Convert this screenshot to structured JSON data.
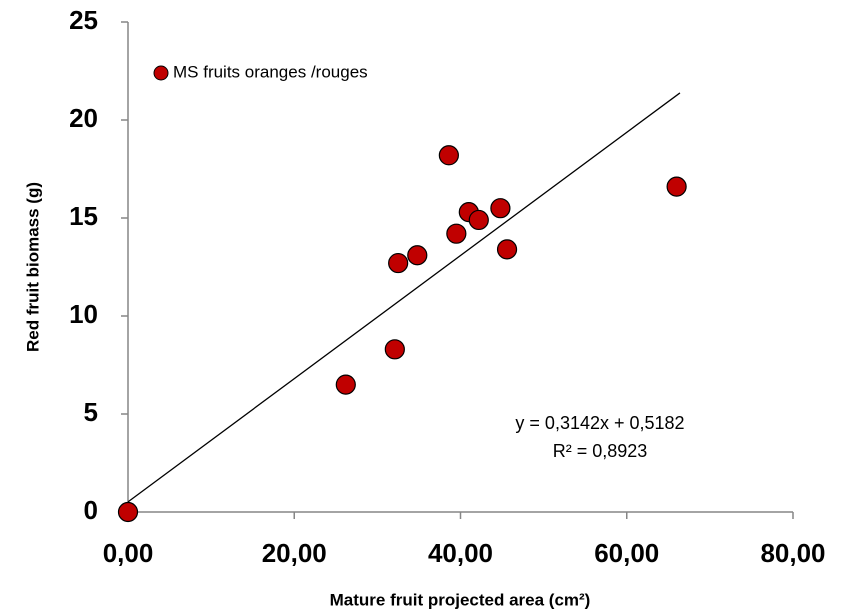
{
  "chart_data": {
    "type": "scatter",
    "x_label": "Mature fruit projected area (cm²)",
    "y_label": "Red fruit biomass (g)",
    "series": [
      {
        "name": "MS fruits oranges /rouges",
        "color": "#c00000",
        "x": [
          0,
          26.2,
          32.1,
          32.5,
          34.8,
          38.6,
          39.5,
          41.0,
          42.2,
          44.8,
          45.6,
          66.0
        ],
        "values": [
          0,
          6.5,
          8.3,
          12.7,
          13.1,
          18.2,
          14.2,
          15.3,
          14.9,
          15.5,
          13.4,
          16.6
        ]
      }
    ],
    "trendline": {
      "slope": 0.3142,
      "intercept": 0.5182,
      "x": [
        0,
        66.4
      ]
    },
    "annotations": [
      "y = 0,3142x + 0,5182",
      "R² = 0,8923"
    ],
    "xlim": [
      0,
      80
    ],
    "xticks": [
      {
        "value": 0,
        "label": "0,00"
      },
      {
        "value": 20,
        "label": "20,00"
      },
      {
        "value": 40,
        "label": "40,00"
      },
      {
        "value": 60,
        "label": "60,00"
      },
      {
        "value": 80,
        "label": "80,00"
      }
    ],
    "ylim": [
      0,
      25
    ],
    "yticks": [
      0,
      5,
      10,
      15,
      20,
      25
    ],
    "grid": false,
    "legend": "top-left"
  }
}
